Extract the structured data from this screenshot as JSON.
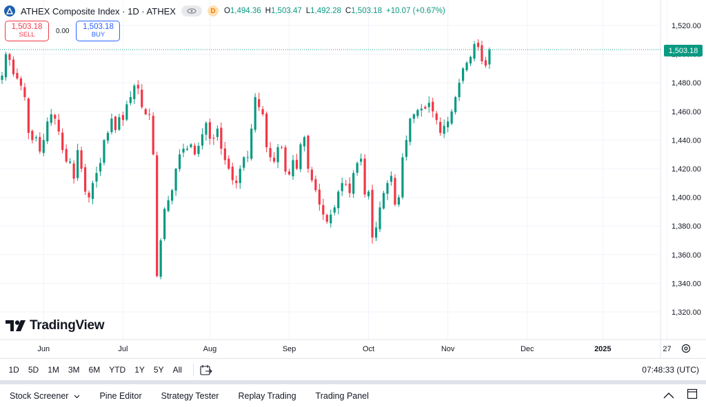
{
  "symbol": {
    "title": "ATHEX Composite Index · 1D · ATHEX",
    "status_letter": "D",
    "ohlc": [
      {
        "k": "O",
        "v": "1,494.36"
      },
      {
        "k": "H",
        "v": "1,503.47"
      },
      {
        "k": "L",
        "v": "1,492.28"
      },
      {
        "k": "C",
        "v": "1,503.18"
      }
    ],
    "change": "+10.07 (+0.67%)"
  },
  "trade": {
    "sell_price": "1,503.18",
    "sell_label": "SELL",
    "spread": "0.00",
    "buy_price": "1,503.18",
    "buy_label": "BUY"
  },
  "last_price_tag": "1,503.18",
  "logo_text": "TradingView",
  "colors": {
    "up": "#089981",
    "down": "#f23645",
    "grid": "#f0f3fa",
    "accent": "#2962ff"
  },
  "chart_data": {
    "type": "candlestick",
    "y_axis": {
      "min": 1320,
      "max": 1520,
      "tick_labels": [
        "1,520.00",
        "1,500.00",
        "1,480.00",
        "1,460.00",
        "1,440.00",
        "1,420.00",
        "1,400.00",
        "1,380.00",
        "1,360.00",
        "1,340.00",
        "1,320.00"
      ],
      "tick_values": [
        1520,
        1500,
        1480,
        1460,
        1440,
        1420,
        1400,
        1380,
        1360,
        1340,
        1320
      ]
    },
    "x_axis": {
      "tick_labels": [
        "Jun",
        "Jul",
        "Aug",
        "Sep",
        "Oct",
        "Nov",
        "Dec",
        "2025",
        "27"
      ],
      "bold_labels": [
        "2025"
      ]
    },
    "anchors": [
      {
        "label": "Jun",
        "idx": 11
      },
      {
        "label": "Jul",
        "idx": 32
      },
      {
        "label": "Aug",
        "idx": 55
      },
      {
        "label": "Sep",
        "idx": 76
      },
      {
        "label": "Oct",
        "idx": 97
      },
      {
        "label": "Nov",
        "idx": 118
      },
      {
        "label": "Dec",
        "idx": 139
      },
      {
        "label": "2025",
        "idx": 159
      },
      {
        "label": "27",
        "idx": 176
      }
    ],
    "last_price": 1503.18,
    "closes": [
      1485,
      1500,
      1496,
      1486,
      1483,
      1478,
      1470,
      1445,
      1440,
      1442,
      1432,
      1440,
      1453,
      1458,
      1455,
      1446,
      1433,
      1425,
      1425,
      1413,
      1433,
      1420,
      1404,
      1400,
      1410,
      1417,
      1424,
      1440,
      1445,
      1455,
      1447,
      1456,
      1454,
      1465,
      1470,
      1478,
      1476,
      1463,
      1458,
      1458,
      1430,
      1345,
      1370,
      1392,
      1398,
      1405,
      1420,
      1430,
      1434,
      1434,
      1437,
      1430,
      1436,
      1444,
      1452,
      1441,
      1441,
      1448,
      1434,
      1426,
      1420,
      1412,
      1410,
      1420,
      1428,
      1428,
      1448,
      1470,
      1463,
      1458,
      1435,
      1428,
      1425,
      1435,
      1435,
      1418,
      1416,
      1426,
      1420,
      1437,
      1442,
      1420,
      1412,
      1405,
      1395,
      1388,
      1383,
      1388,
      1393,
      1404,
      1410,
      1409,
      1403,
      1417,
      1424,
      1427,
      1402,
      1404,
      1372,
      1379,
      1393,
      1403,
      1410,
      1415,
      1395,
      1400,
      1428,
      1440,
      1455,
      1458,
      1461,
      1462,
      1462,
      1466,
      1460,
      1454,
      1445,
      1450,
      1453,
      1460,
      1470,
      1480,
      1490,
      1494,
      1498,
      1507,
      1505,
      1495,
      1492,
      1503
    ],
    "extra_note": "values read approximately from candle closes"
  },
  "range_buttons": [
    "1D",
    "5D",
    "1M",
    "3M",
    "6M",
    "YTD",
    "1Y",
    "5Y",
    "All"
  ],
  "clock": "07:48:33 (UTC)",
  "bottom_tabs": [
    {
      "label": "Stock Screener",
      "has_chevron": true
    },
    {
      "label": "Pine Editor"
    },
    {
      "label": "Strategy Tester"
    },
    {
      "label": "Replay Trading"
    },
    {
      "label": "Trading Panel"
    }
  ]
}
